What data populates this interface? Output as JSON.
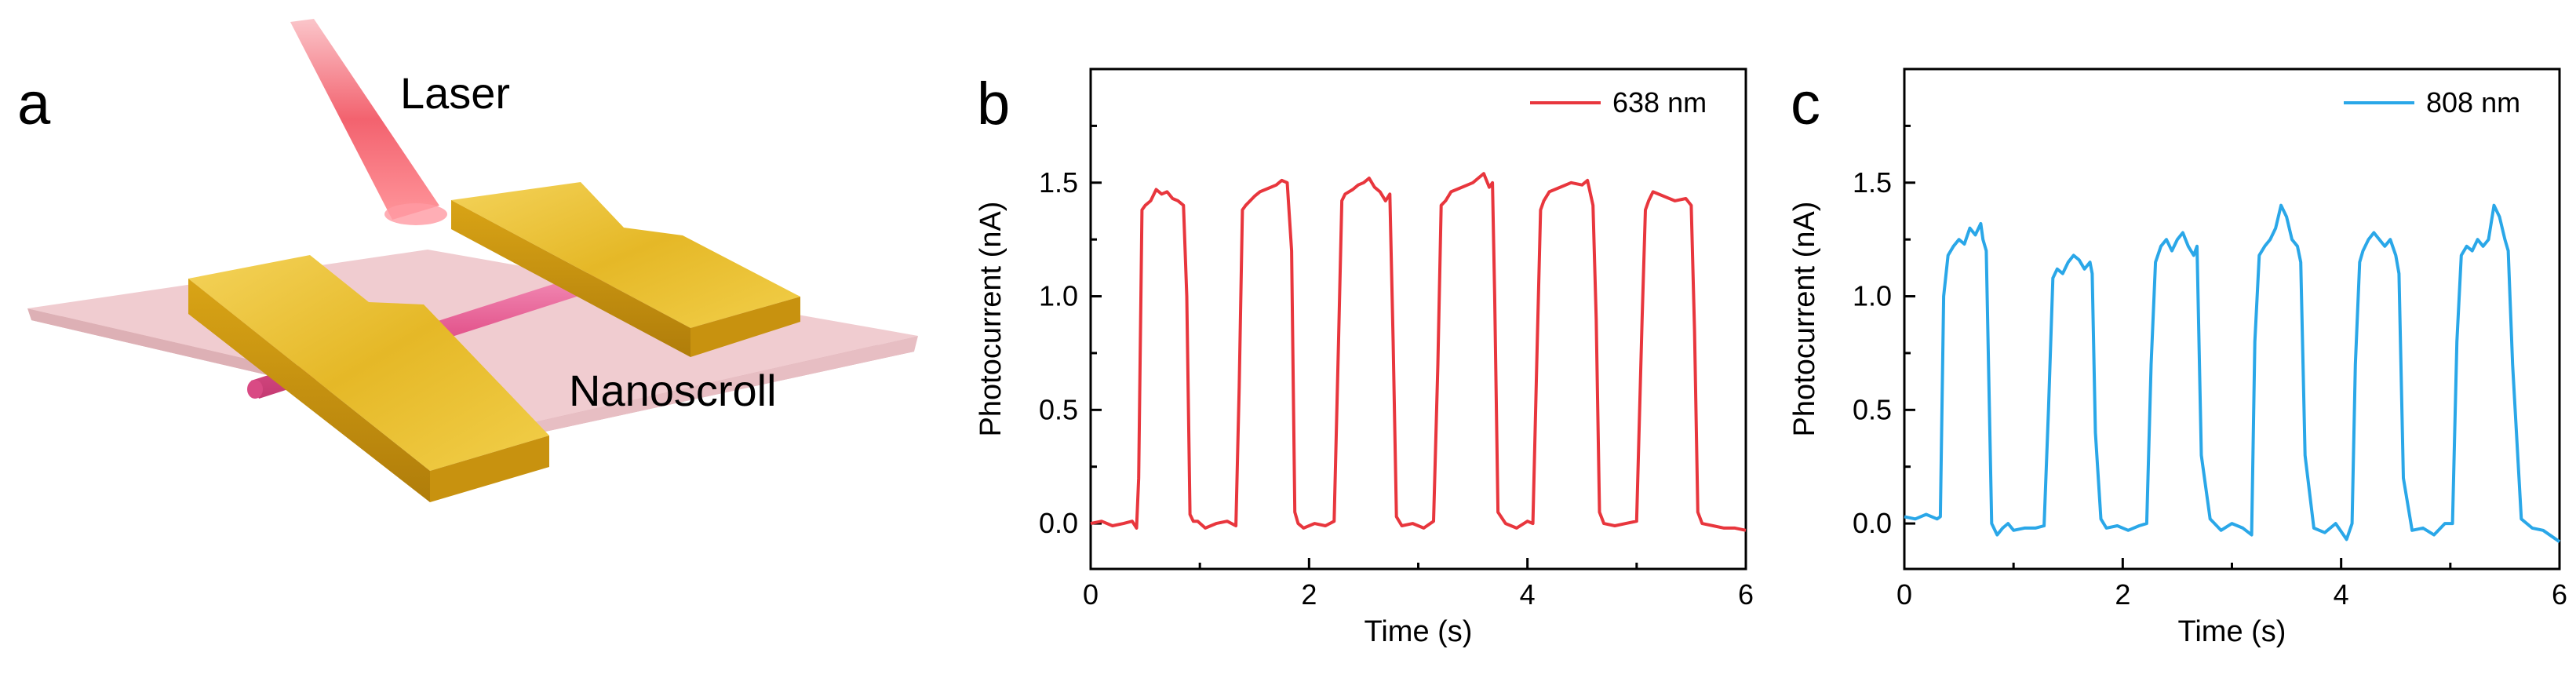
{
  "panel_a": {
    "letter": "a",
    "laser_label": "Laser",
    "nanoscroll_label": "Nanoscroll",
    "colors": {
      "substrate": "#efc9cd",
      "gold": "#e2b72a",
      "scroll": "#e4588f",
      "laser": "#f25a67"
    }
  },
  "chart_data": [
    {
      "type": "line",
      "panel": "b",
      "title": "",
      "xlabel": "Time (s)",
      "ylabel": "Photocurrent (nA)",
      "xlim": [
        0,
        6
      ],
      "ylim": [
        -0.2,
        2.0
      ],
      "xticks": [
        0,
        2,
        4,
        6
      ],
      "xtick_labels": [
        "0",
        "2",
        "4",
        "6"
      ],
      "yticks": [
        0.0,
        0.5,
        1.0,
        1.5
      ],
      "ytick_labels": [
        "0.0",
        "0.5",
        "1.0",
        "1.5"
      ],
      "legend_position": "top-right",
      "series": [
        {
          "name": "638 nm",
          "color": "#e8363d",
          "x": [
            0.0,
            0.1,
            0.2,
            0.3,
            0.38,
            0.42,
            0.44,
            0.47,
            0.5,
            0.55,
            0.6,
            0.65,
            0.7,
            0.75,
            0.8,
            0.85,
            0.88,
            0.91,
            0.94,
            0.98,
            1.05,
            1.15,
            1.25,
            1.33,
            1.36,
            1.39,
            1.42,
            1.5,
            1.55,
            1.6,
            1.65,
            1.7,
            1.75,
            1.8,
            1.84,
            1.87,
            1.9,
            1.95,
            2.05,
            2.15,
            2.23,
            2.27,
            2.3,
            2.33,
            2.4,
            2.45,
            2.5,
            2.55,
            2.6,
            2.65,
            2.7,
            2.74,
            2.77,
            2.8,
            2.85,
            2.95,
            3.05,
            3.14,
            3.18,
            3.21,
            3.25,
            3.3,
            3.4,
            3.5,
            3.55,
            3.6,
            3.65,
            3.68,
            3.7,
            3.73,
            3.8,
            3.9,
            4.0,
            4.05,
            4.09,
            4.12,
            4.15,
            4.2,
            4.3,
            4.4,
            4.5,
            4.55,
            4.6,
            4.63,
            4.66,
            4.7,
            4.8,
            4.9,
            5.0,
            5.05,
            5.08,
            5.11,
            5.15,
            5.25,
            5.35,
            5.45,
            5.5,
            5.53,
            5.56,
            5.6,
            5.7,
            5.8,
            5.9,
            6.0
          ],
          "y": [
            0.0,
            0.01,
            -0.01,
            0.0,
            0.01,
            -0.02,
            0.2,
            1.38,
            1.4,
            1.42,
            1.47,
            1.45,
            1.46,
            1.43,
            1.42,
            1.4,
            1.0,
            0.04,
            0.01,
            0.01,
            -0.02,
            0.0,
            0.01,
            -0.01,
            0.6,
            1.38,
            1.4,
            1.44,
            1.46,
            1.47,
            1.48,
            1.49,
            1.51,
            1.5,
            1.2,
            0.05,
            0.0,
            -0.02,
            0.0,
            -0.01,
            0.01,
            0.8,
            1.42,
            1.45,
            1.47,
            1.49,
            1.5,
            1.52,
            1.48,
            1.46,
            1.42,
            1.45,
            0.8,
            0.03,
            -0.01,
            0.0,
            -0.02,
            0.01,
            0.7,
            1.4,
            1.42,
            1.46,
            1.48,
            1.5,
            1.52,
            1.54,
            1.48,
            1.5,
            1.0,
            0.05,
            0.0,
            -0.02,
            0.01,
            0.0,
            0.8,
            1.38,
            1.42,
            1.46,
            1.48,
            1.5,
            1.49,
            1.51,
            1.4,
            0.9,
            0.05,
            0.0,
            -0.01,
            0.0,
            0.01,
            0.9,
            1.38,
            1.42,
            1.46,
            1.44,
            1.42,
            1.43,
            1.4,
            0.85,
            0.05,
            0.0,
            -0.01,
            -0.02,
            -0.02,
            -0.03
          ]
        }
      ]
    },
    {
      "type": "line",
      "panel": "c",
      "title": "",
      "xlabel": "Time (s)",
      "ylabel": "Photocurrent (nA)",
      "xlim": [
        0,
        6
      ],
      "ylim": [
        -0.2,
        2.0
      ],
      "xticks": [
        0,
        2,
        4,
        6
      ],
      "xtick_labels": [
        "0",
        "2",
        "4",
        "6"
      ],
      "yticks": [
        0.0,
        0.5,
        1.0,
        1.5
      ],
      "ytick_labels": [
        "0.0",
        "0.5",
        "1.0",
        "1.5"
      ],
      "legend_position": "top-right",
      "series": [
        {
          "name": "808 nm",
          "color": "#2aa7e8",
          "x": [
            0.0,
            0.1,
            0.2,
            0.3,
            0.33,
            0.36,
            0.4,
            0.45,
            0.5,
            0.55,
            0.6,
            0.65,
            0.7,
            0.72,
            0.75,
            0.8,
            0.85,
            0.9,
            0.95,
            1.0,
            1.1,
            1.2,
            1.28,
            1.32,
            1.36,
            1.4,
            1.45,
            1.5,
            1.55,
            1.6,
            1.65,
            1.7,
            1.72,
            1.75,
            1.8,
            1.85,
            1.95,
            2.05,
            2.15,
            2.22,
            2.26,
            2.3,
            2.35,
            2.4,
            2.45,
            2.5,
            2.55,
            2.6,
            2.65,
            2.68,
            2.72,
            2.8,
            2.9,
            3.0,
            3.1,
            3.18,
            3.21,
            3.25,
            3.3,
            3.35,
            3.4,
            3.45,
            3.5,
            3.55,
            3.6,
            3.63,
            3.67,
            3.75,
            3.85,
            3.95,
            4.05,
            4.1,
            4.13,
            4.17,
            4.2,
            4.25,
            4.3,
            4.35,
            4.4,
            4.45,
            4.5,
            4.53,
            4.57,
            4.65,
            4.75,
            4.85,
            4.95,
            5.02,
            5.06,
            5.1,
            5.15,
            5.2,
            5.25,
            5.3,
            5.35,
            5.4,
            5.45,
            5.5,
            5.53,
            5.57,
            5.65,
            5.75,
            5.85,
            6.0
          ],
          "y": [
            0.03,
            0.02,
            0.04,
            0.02,
            0.03,
            1.0,
            1.18,
            1.22,
            1.25,
            1.23,
            1.3,
            1.27,
            1.32,
            1.25,
            1.2,
            0.0,
            -0.05,
            -0.02,
            0.0,
            -0.03,
            -0.02,
            -0.02,
            -0.01,
            0.5,
            1.08,
            1.12,
            1.1,
            1.15,
            1.18,
            1.16,
            1.12,
            1.15,
            1.1,
            0.4,
            0.02,
            -0.02,
            -0.01,
            -0.03,
            -0.01,
            0.0,
            0.7,
            1.15,
            1.22,
            1.25,
            1.2,
            1.25,
            1.28,
            1.22,
            1.18,
            1.22,
            0.3,
            0.02,
            -0.03,
            0.0,
            -0.02,
            -0.05,
            0.8,
            1.18,
            1.22,
            1.25,
            1.3,
            1.4,
            1.35,
            1.25,
            1.22,
            1.15,
            0.3,
            -0.02,
            -0.04,
            0.0,
            -0.07,
            0.0,
            0.7,
            1.15,
            1.2,
            1.25,
            1.28,
            1.25,
            1.22,
            1.25,
            1.18,
            1.1,
            0.2,
            -0.03,
            -0.02,
            -0.05,
            0.0,
            0.0,
            0.8,
            1.18,
            1.22,
            1.2,
            1.25,
            1.22,
            1.25,
            1.4,
            1.35,
            1.25,
            1.2,
            0.7,
            0.02,
            -0.02,
            -0.03,
            -0.08
          ]
        }
      ]
    }
  ]
}
